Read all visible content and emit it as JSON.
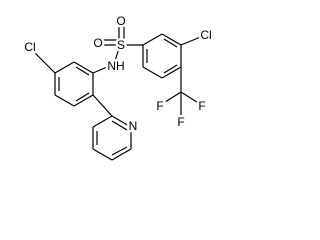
{
  "atoms": [
    "Cl",
    "NH",
    "S",
    "O",
    "O",
    "Cl",
    "F",
    "F",
    "F",
    "N"
  ]
}
